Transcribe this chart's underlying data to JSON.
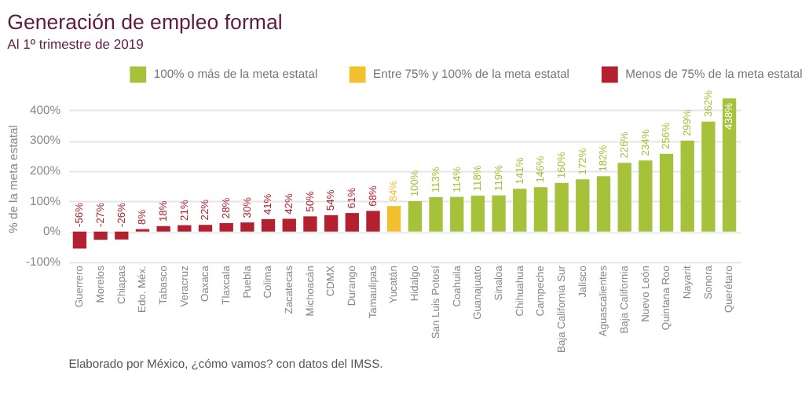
{
  "chart_data": {
    "type": "bar",
    "title": "Generación de empleo formal",
    "subtitle": "Al 1º trimestre de 2019",
    "ylabel": "% de la meta estatal",
    "categories": [
      "Guerrero",
      "Morelos",
      "Chiapas",
      "Edo. Méx.",
      "Tabasco",
      "Veracruz",
      "Oaxaca",
      "Tlaxcala",
      "Puebla",
      "Colima",
      "Zacatecas",
      "Michoacán",
      "CDMX",
      "Durango",
      "Tamaulipas",
      "Yucatán",
      "Hidalgo",
      "San Luis Potosí",
      "Coahuila",
      "Guanajuato",
      "Sinaloa",
      "Chihuahua",
      "Campeche",
      "Baja California Sur",
      "Jalisco",
      "Aguascalientes",
      "Baja California",
      "Nuevo León",
      "Quintana Roo",
      "Nayarit",
      "Sonora",
      "Querétaro"
    ],
    "series": [
      {
        "name": "100% o más de la meta estatal",
        "color": "#a5c23a",
        "values": [
          null,
          null,
          null,
          null,
          null,
          null,
          null,
          null,
          null,
          null,
          null,
          null,
          null,
          null,
          null,
          null,
          100,
          113,
          114,
          118,
          119,
          141,
          146,
          160,
          172,
          182,
          226,
          234,
          256,
          299,
          362,
          438
        ]
      },
      {
        "name": "Entre 75% y 100% de la meta estatal",
        "color": "#f2bf2f",
        "values": [
          null,
          null,
          null,
          null,
          null,
          null,
          null,
          null,
          null,
          null,
          null,
          null,
          null,
          null,
          null,
          84,
          null,
          null,
          null,
          null,
          null,
          null,
          null,
          null,
          null,
          null,
          null,
          null,
          null,
          null,
          null,
          null
        ]
      },
      {
        "name": "Menos de 75% de la meta estatal",
        "color": "#b3202f",
        "values": [
          -56,
          -27,
          -26,
          8,
          18,
          21,
          22,
          28,
          30,
          41,
          42,
          50,
          54,
          61,
          68,
          null,
          null,
          null,
          null,
          null,
          null,
          null,
          null,
          null,
          null,
          null,
          null,
          null,
          null,
          null,
          null,
          null
        ]
      }
    ],
    "value_labels": [
      "-56%",
      "-27%",
      "-26%",
      "8%",
      "18%",
      "21%",
      "22%",
      "28%",
      "30%",
      "41%",
      "42%",
      "50%",
      "54%",
      "61%",
      "68%",
      "84%",
      "100%",
      "113%",
      "114%",
      "118%",
      "119%",
      "141%",
      "146%",
      "160%",
      "172%",
      "182%",
      "226%",
      "234%",
      "256%",
      "299%",
      "362%",
      "438%"
    ],
    "ylim": [
      -100,
      450
    ],
    "yticks": [
      {
        "value": -100,
        "label": "-100%"
      },
      {
        "value": 0,
        "label": "0%"
      },
      {
        "value": 100,
        "label": "100%"
      },
      {
        "value": 200,
        "label": "200%"
      },
      {
        "value": 300,
        "label": "300%"
      },
      {
        "value": 400,
        "label": "400%"
      }
    ],
    "grid": "y",
    "legend": "top",
    "annotations": [
      "Elaborado por México, ¿cómo vamos? con datos del IMSS."
    ]
  }
}
